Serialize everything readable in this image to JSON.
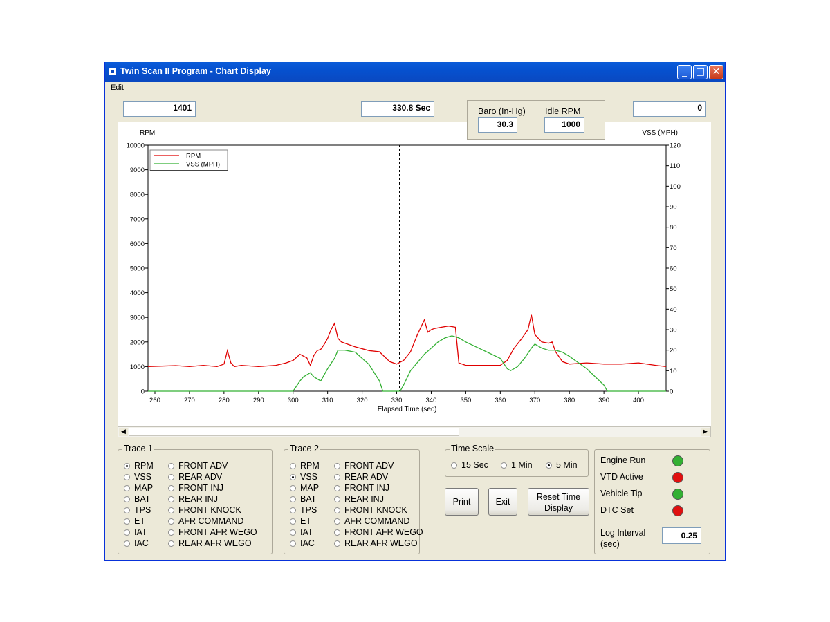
{
  "window": {
    "title": "Twin Scan II Program - Chart Display"
  },
  "menu": {
    "edit": "Edit"
  },
  "readouts": {
    "rpm_value": "1401",
    "time_value": "330.8 Sec",
    "vss_value": "0"
  },
  "baro_panel": {
    "baro_label": "Baro (In-Hg)",
    "baro_value": "30.3",
    "idle_label": "Idle RPM",
    "idle_value": "1000"
  },
  "chart_data": {
    "type": "line",
    "xlabel": "Elapsed Time (sec)",
    "ylabel_left": "RPM",
    "ylabel_right": "VSS (MPH)",
    "xlim": [
      258,
      408
    ],
    "ylim_left": [
      0,
      10000
    ],
    "ylim_right": [
      0,
      120
    ],
    "x_ticks": [
      260,
      270,
      280,
      290,
      300,
      310,
      320,
      330,
      340,
      350,
      360,
      370,
      380,
      390,
      400
    ],
    "y_ticks_left": [
      0,
      1000,
      2000,
      3000,
      4000,
      5000,
      6000,
      7000,
      8000,
      9000,
      10000
    ],
    "y_ticks_right": [
      0,
      10,
      20,
      30,
      40,
      50,
      60,
      70,
      80,
      90,
      100,
      110,
      120
    ],
    "cursor_x": 330.8,
    "legend_position": "top-left",
    "series": [
      {
        "name": "RPM",
        "axis": "left",
        "color": "#e00000",
        "x": [
          258,
          262,
          266,
          270,
          274,
          278,
          280,
          281,
          282,
          283,
          285,
          290,
          295,
          298,
          300,
          302,
          304,
          305,
          306,
          307,
          308,
          309,
          310,
          311,
          312,
          313,
          314,
          318,
          322,
          325,
          328,
          330,
          332,
          334,
          336,
          338,
          339,
          340,
          341,
          343,
          345,
          347,
          348,
          350,
          355,
          360,
          362,
          364,
          366,
          368,
          369,
          370,
          372,
          374,
          375,
          376,
          378,
          380,
          385,
          390,
          395,
          400,
          405,
          408
        ],
        "y": [
          1000,
          1020,
          1040,
          1000,
          1050,
          1000,
          1100,
          1650,
          1150,
          1000,
          1050,
          1000,
          1050,
          1150,
          1250,
          1500,
          1350,
          1050,
          1450,
          1650,
          1700,
          1900,
          2150,
          2500,
          2750,
          2150,
          2000,
          1800,
          1650,
          1600,
          1200,
          1100,
          1250,
          1600,
          2300,
          2900,
          2400,
          2500,
          2550,
          2600,
          2650,
          2600,
          1150,
          1050,
          1050,
          1050,
          1250,
          1750,
          2100,
          2500,
          3100,
          2300,
          2000,
          1950,
          2000,
          1600,
          1200,
          1100,
          1150,
          1100,
          1100,
          1150,
          1050,
          1000
        ]
      },
      {
        "name": "VSS (MPH)",
        "axis": "right",
        "color": "#33b033",
        "x": [
          258,
          300,
          302,
          303,
          305,
          306,
          307,
          308,
          310,
          312,
          313,
          315,
          318,
          320,
          322,
          325,
          326,
          330,
          331,
          332,
          334,
          336,
          338,
          340,
          342,
          344,
          346,
          348,
          350,
          355,
          360,
          362,
          363,
          365,
          367,
          369,
          370,
          372,
          374,
          376,
          378,
          380,
          385,
          390,
          391,
          408
        ],
        "y": [
          0,
          0,
          5,
          7,
          9,
          7,
          6,
          5,
          11,
          16,
          20,
          20,
          19,
          16,
          13,
          5,
          0,
          0,
          0,
          3,
          10,
          14,
          18,
          21,
          24,
          26,
          27,
          26,
          24,
          20,
          16,
          11,
          10,
          12,
          16,
          21,
          23,
          21,
          20,
          20,
          19,
          17,
          11,
          3,
          0,
          0
        ]
      }
    ]
  },
  "trace1": {
    "title": "Trace 1",
    "col1": [
      "RPM",
      "VSS",
      "MAP",
      "BAT",
      "TPS",
      "ET",
      "IAT",
      "IAC"
    ],
    "col2": [
      "FRONT ADV",
      "REAR ADV",
      "FRONT INJ",
      "REAR INJ",
      "FRONT KNOCK",
      "AFR COMMAND",
      "FRONT AFR WEGO",
      "REAR AFR WEGO"
    ],
    "selected": "RPM"
  },
  "trace2": {
    "title": "Trace 2",
    "col1": [
      "RPM",
      "VSS",
      "MAP",
      "BAT",
      "TPS",
      "ET",
      "IAT",
      "IAC"
    ],
    "col2": [
      "FRONT ADV",
      "REAR ADV",
      "FRONT INJ",
      "REAR INJ",
      "FRONT KNOCK",
      "AFR COMMAND",
      "FRONT AFR WEGO",
      "REAR AFR WEGO"
    ],
    "selected": "VSS"
  },
  "time_scale": {
    "title": "Time Scale",
    "options": [
      "15 Sec",
      "1 Min",
      "5 Min"
    ],
    "selected": "5 Min"
  },
  "buttons": {
    "print": "Print",
    "exit": "Exit",
    "reset_line1": "Reset Time",
    "reset_line2": "Display"
  },
  "status": {
    "items": [
      {
        "label": "Engine Run",
        "color": "#33b033"
      },
      {
        "label": "VTD Active",
        "color": "#e01010"
      },
      {
        "label": "Vehicle Tip",
        "color": "#33b033"
      },
      {
        "label": "DTC Set",
        "color": "#e01010"
      }
    ],
    "log_label_1": "Log Interval",
    "log_label_2": "(sec)",
    "log_value": "0.25"
  }
}
